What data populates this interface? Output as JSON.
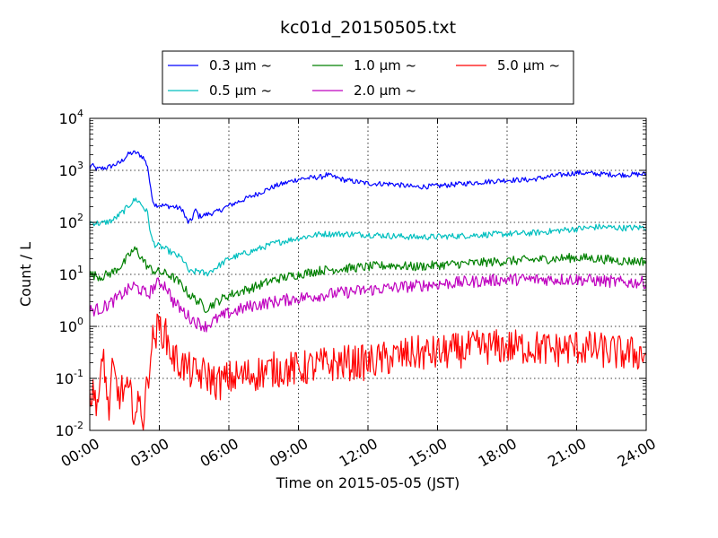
{
  "chart_data": {
    "type": "line",
    "title": "kc01d_20150505.txt",
    "xlabel": "Time on 2015-05-05 (JST)",
    "ylabel": "Count / L",
    "yscale": "log",
    "ylim": [
      0.01,
      10000
    ],
    "xlim_hours": [
      0,
      24
    ],
    "grid": true,
    "legend_position": "top-center (above axes)",
    "x_tick_labels": [
      "00:00",
      "03:00",
      "06:00",
      "09:00",
      "12:00",
      "15:00",
      "18:00",
      "21:00",
      "24:00"
    ],
    "y_tick_labels": [
      {
        "base": "10",
        "exp": "-2"
      },
      {
        "base": "10",
        "exp": "-1"
      },
      {
        "base": "10",
        "exp": "0"
      },
      {
        "base": "10",
        "exp": "1"
      },
      {
        "base": "10",
        "exp": "2"
      },
      {
        "base": "10",
        "exp": "3"
      },
      {
        "base": "10",
        "exp": "4"
      }
    ],
    "legend_suffix": "μm  ~",
    "series": [
      {
        "name": "0.3",
        "color": "#0000ff",
        "noise": 0.05,
        "points": [
          [
            0,
            1000
          ],
          [
            0.05,
            1300
          ],
          [
            0.3,
            1050
          ],
          [
            0.8,
            1150
          ],
          [
            1.3,
            1400
          ],
          [
            1.7,
            2100
          ],
          [
            2.0,
            2200
          ],
          [
            2.3,
            1800
          ],
          [
            2.5,
            1200
          ],
          [
            2.65,
            350
          ],
          [
            2.8,
            220
          ],
          [
            3.2,
            210
          ],
          [
            3.6,
            200
          ],
          [
            3.8,
            190
          ],
          [
            4.0,
            180
          ],
          [
            4.1,
            130
          ],
          [
            4.25,
            100
          ],
          [
            4.4,
            110
          ],
          [
            4.5,
            160
          ],
          [
            4.6,
            170
          ],
          [
            4.7,
            130
          ],
          [
            5.0,
            140
          ],
          [
            5.5,
            160
          ],
          [
            6.0,
            210
          ],
          [
            7.0,
            320
          ],
          [
            8.0,
            500
          ],
          [
            9.0,
            680
          ],
          [
            10.0,
            750
          ],
          [
            10.2,
            820
          ],
          [
            11.0,
            650
          ],
          [
            12.0,
            560
          ],
          [
            13.0,
            550
          ],
          [
            14.0,
            480
          ],
          [
            15.0,
            500
          ],
          [
            16.0,
            550
          ],
          [
            17.0,
            600
          ],
          [
            18.0,
            650
          ],
          [
            19.0,
            660
          ],
          [
            20.0,
            780
          ],
          [
            21.0,
            900
          ],
          [
            22.0,
            850
          ],
          [
            23.0,
            820
          ],
          [
            24.0,
            850
          ]
        ]
      },
      {
        "name": "0.5",
        "color": "#00bfbf",
        "noise": 0.06,
        "points": [
          [
            0,
            100
          ],
          [
            0.5,
            95
          ],
          [
            1.0,
            110
          ],
          [
            1.5,
            170
          ],
          [
            1.8,
            240
          ],
          [
            2.0,
            280
          ],
          [
            2.2,
            230
          ],
          [
            2.5,
            150
          ],
          [
            2.65,
            50
          ],
          [
            2.8,
            38
          ],
          [
            3.2,
            32
          ],
          [
            3.6,
            25
          ],
          [
            4.0,
            20
          ],
          [
            4.3,
            11
          ],
          [
            4.5,
            11
          ],
          [
            4.7,
            12
          ],
          [
            5.0,
            10
          ],
          [
            5.5,
            14
          ],
          [
            6.0,
            20
          ],
          [
            7.0,
            28
          ],
          [
            8.0,
            40
          ],
          [
            9.0,
            50
          ],
          [
            10.0,
            60
          ],
          [
            11.0,
            60
          ],
          [
            12.0,
            58
          ],
          [
            13.0,
            55
          ],
          [
            14.0,
            52
          ],
          [
            15.0,
            53
          ],
          [
            16.0,
            55
          ],
          [
            17.0,
            58
          ],
          [
            18.0,
            60
          ],
          [
            19.0,
            62
          ],
          [
            20.0,
            68
          ],
          [
            21.0,
            75
          ],
          [
            22.0,
            82
          ],
          [
            23.0,
            78
          ],
          [
            24.0,
            80
          ]
        ]
      },
      {
        "name": "1.0",
        "color": "#008000",
        "noise": 0.09,
        "points": [
          [
            0,
            10
          ],
          [
            0.5,
            9
          ],
          [
            1.0,
            11
          ],
          [
            1.5,
            17
          ],
          [
            1.8,
            27
          ],
          [
            2.0,
            30
          ],
          [
            2.2,
            22
          ],
          [
            2.5,
            14
          ],
          [
            2.7,
            12
          ],
          [
            3.0,
            11
          ],
          [
            3.4,
            10
          ],
          [
            3.7,
            8
          ],
          [
            4.0,
            6
          ],
          [
            4.3,
            4
          ],
          [
            4.5,
            3.5
          ],
          [
            4.7,
            3
          ],
          [
            5.0,
            2.2
          ],
          [
            5.5,
            3
          ],
          [
            6.0,
            4
          ],
          [
            7.0,
            5.5
          ],
          [
            8.0,
            8
          ],
          [
            9.0,
            10
          ],
          [
            10.0,
            12
          ],
          [
            11.0,
            13
          ],
          [
            12.0,
            14
          ],
          [
            13.0,
            15
          ],
          [
            14.0,
            14
          ],
          [
            15.0,
            15
          ],
          [
            16.0,
            16
          ],
          [
            17.0,
            17
          ],
          [
            18.0,
            18
          ],
          [
            19.0,
            19
          ],
          [
            20.0,
            20
          ],
          [
            21.0,
            21
          ],
          [
            22.0,
            20
          ],
          [
            23.0,
            18
          ],
          [
            24.0,
            18
          ]
        ]
      },
      {
        "name": "2.0",
        "color": "#bf00bf",
        "noise": 0.12,
        "points": [
          [
            0,
            2
          ],
          [
            0.5,
            2.2
          ],
          [
            1.0,
            3
          ],
          [
            1.5,
            4.5
          ],
          [
            1.9,
            6
          ],
          [
            2.2,
            5
          ],
          [
            2.5,
            4
          ],
          [
            2.8,
            6
          ],
          [
            3.0,
            7
          ],
          [
            3.3,
            6
          ],
          [
            3.6,
            3
          ],
          [
            4.0,
            2
          ],
          [
            4.3,
            1.5
          ],
          [
            4.6,
            1.2
          ],
          [
            5.0,
            1.0
          ],
          [
            5.5,
            1.4
          ],
          [
            6.0,
            1.8
          ],
          [
            7.0,
            2.5
          ],
          [
            8.0,
            3.0
          ],
          [
            9.0,
            3.5
          ],
          [
            10.0,
            4.0
          ],
          [
            11.0,
            4.5
          ],
          [
            12.0,
            5.0
          ],
          [
            13.0,
            5.5
          ],
          [
            14.0,
            6.0
          ],
          [
            15.0,
            6.5
          ],
          [
            16.0,
            7.0
          ],
          [
            17.0,
            7.5
          ],
          [
            18.0,
            8.0
          ],
          [
            19.0,
            8.0
          ],
          [
            20.0,
            8.0
          ],
          [
            21.0,
            8.0
          ],
          [
            22.0,
            7.5
          ],
          [
            23.0,
            7.0
          ],
          [
            24.0,
            7.0
          ]
        ]
      },
      {
        "name": "5.0",
        "color": "#ff0000",
        "noise": 0.35,
        "points": [
          [
            0,
            0.05
          ],
          [
            0.4,
            0.04
          ],
          [
            0.6,
            0.3
          ],
          [
            0.8,
            0.02
          ],
          [
            1.0,
            0.15
          ],
          [
            1.2,
            0.05
          ],
          [
            1.5,
            0.06
          ],
          [
            1.8,
            0.04
          ],
          [
            2.0,
            0.02
          ],
          [
            2.2,
            0.04
          ],
          [
            2.3,
            0.015
          ],
          [
            2.5,
            0.09
          ],
          [
            2.6,
            0.3
          ],
          [
            2.8,
            0.7
          ],
          [
            3.0,
            0.95
          ],
          [
            3.2,
            0.8
          ],
          [
            3.4,
            0.45
          ],
          [
            3.6,
            0.25
          ],
          [
            4.0,
            0.18
          ],
          [
            4.5,
            0.12
          ],
          [
            5.0,
            0.12
          ],
          [
            5.5,
            0.08
          ],
          [
            6.0,
            0.1
          ],
          [
            7.0,
            0.12
          ],
          [
            8.0,
            0.15
          ],
          [
            9.0,
            0.15
          ],
          [
            10.0,
            0.18
          ],
          [
            11.0,
            0.2
          ],
          [
            12.0,
            0.2
          ],
          [
            13.0,
            0.25
          ],
          [
            14.0,
            0.3
          ],
          [
            15.0,
            0.3
          ],
          [
            16.0,
            0.35
          ],
          [
            17.0,
            0.4
          ],
          [
            18.0,
            0.4
          ],
          [
            19.0,
            0.4
          ],
          [
            20.0,
            0.35
          ],
          [
            21.0,
            0.4
          ],
          [
            22.0,
            0.35
          ],
          [
            23.0,
            0.3
          ],
          [
            24.0,
            0.3
          ]
        ]
      }
    ]
  }
}
